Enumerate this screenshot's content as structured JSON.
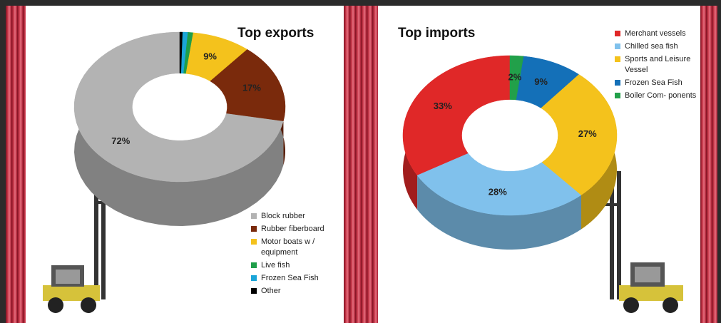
{
  "chart_data": [
    {
      "type": "pie",
      "title": "Top exports",
      "categories": [
        "Block rubber",
        "Rubber fiberboard",
        "Motor boats w / equipment",
        "Live fish",
        "Frozen Sea Fish",
        "Other"
      ],
      "values": [
        72,
        17,
        9,
        0.8,
        0.8,
        0.4
      ],
      "value_labels": [
        "72%",
        "17%",
        "9%",
        null,
        null,
        null
      ],
      "colors": [
        "#b3b3b3",
        "#7a2a0c",
        "#f4c21c",
        "#1f9e4a",
        "#1aa5d8",
        "#000000"
      ]
    },
    {
      "type": "pie",
      "title": "Top imports",
      "categories": [
        "Merchant vessels",
        "Chilled sea fish",
        "Sports and Leisure Vessel",
        "Frozen Sea Fish",
        "Boiler Com- ponents"
      ],
      "values": [
        33,
        28,
        27,
        9,
        2
      ],
      "value_labels": [
        "33%",
        "28%",
        "27%",
        "9%",
        "2%"
      ],
      "colors": [
        "#e02828",
        "#80c1ec",
        "#f4c21c",
        "#1470b8",
        "#22a04a"
      ]
    }
  ]
}
